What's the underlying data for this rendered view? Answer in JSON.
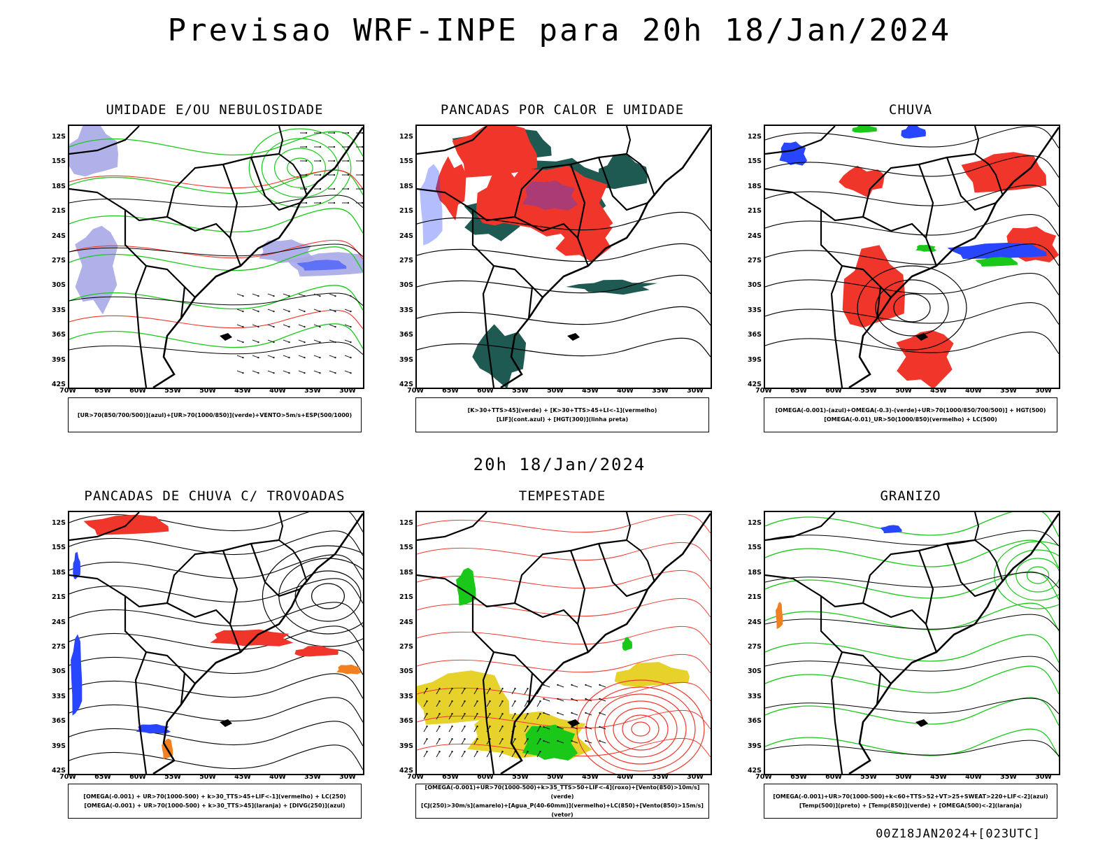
{
  "title": "Previsao WRF-INPE  para 20h 18/Jan/2024",
  "mid_date": "20h 18/Jan/2024",
  "footer": "00Z18JAN2024+[023UTC]",
  "colors": {
    "red": "#f0362b",
    "green": "#19c819",
    "blue": "#2846ff",
    "lavender": "#a8a8e8",
    "teal": "#1f5a52",
    "yellow": "#e6d22a",
    "orange": "#f08020"
  },
  "chart_data": [
    {
      "type": "heatmap",
      "title": "UMIDADE E/OU NEBULOSIDADE",
      "legend_lines": [
        "[UR>70(850/700/500)](azul)+[UR>70(1000/850)](verde)+VENTO>5m/s+ESP(500/1000)"
      ],
      "x_ticks": [
        "70W",
        "65W",
        "60W",
        "55W",
        "50W",
        "45W",
        "40W",
        "35W",
        "30W"
      ],
      "y_ticks": [
        "12S",
        "15S",
        "18S",
        "21S",
        "24S",
        "27S",
        "30S",
        "33S",
        "36S",
        "39S",
        "42S"
      ],
      "xlim": [
        -70,
        -28
      ],
      "ylim": [
        -42,
        -10
      ]
    },
    {
      "type": "heatmap",
      "title": "PANCADAS POR CALOR E UMIDADE",
      "legend_lines": [
        "[K>30+TTS>45](verde) + [K>30+TTS>45+LI<-1](vermelho)",
        "[LIF](cont.azul) + [HGT(300)](linha preta)"
      ],
      "x_ticks": [
        "70W",
        "65W",
        "60W",
        "55W",
        "50W",
        "45W",
        "40W",
        "35W",
        "30W"
      ],
      "y_ticks": [
        "12S",
        "15S",
        "18S",
        "21S",
        "24S",
        "27S",
        "30S",
        "33S",
        "36S",
        "39S",
        "42S"
      ],
      "xlim": [
        -70,
        -28
      ],
      "ylim": [
        -42,
        -10
      ]
    },
    {
      "type": "heatmap",
      "title": "CHUVA",
      "legend_lines": [
        "[OMEGA(-0.001)-(azul)+OMEGA(-0.3)-(verde)+UR>70(1000/850/700/500)] + HGT(500)",
        "[OMEGA(-0.01)_UR>50(1000/850)(vermelho) + LC(500)"
      ],
      "x_ticks": [
        "70W",
        "65W",
        "60W",
        "55W",
        "50W",
        "45W",
        "40W",
        "35W",
        "30W"
      ],
      "y_ticks": [
        "12S",
        "15S",
        "18S",
        "21S",
        "24S",
        "27S",
        "30S",
        "33S",
        "36S",
        "39S",
        "42S"
      ],
      "xlim": [
        -70,
        -28
      ],
      "ylim": [
        -42,
        -10
      ]
    },
    {
      "type": "heatmap",
      "title": "PANCADAS DE CHUVA C/ TROVOADAS",
      "legend_lines": [
        "[OMEGA(-0.001) + UR>70(1000-500) + k>30_TTS>45+LIF<-1](vermelho) + LC(250)",
        "[OMEGA(-0.001) + UR>70(1000-500) + k>30_TTS>45](laranja) + [DIVG(250)](azul)"
      ],
      "x_ticks": [
        "70W",
        "65W",
        "60W",
        "55W",
        "50W",
        "45W",
        "40W",
        "35W",
        "30W"
      ],
      "y_ticks": [
        "12S",
        "15S",
        "18S",
        "21S",
        "24S",
        "27S",
        "30S",
        "33S",
        "36S",
        "39S",
        "42S"
      ],
      "xlim": [
        -70,
        -28
      ],
      "ylim": [
        -42,
        -10
      ]
    },
    {
      "type": "heatmap",
      "title": "TEMPESTADE",
      "legend_lines": [
        "[OMEGA(-0.001)+UR>70(1000-500)+k>35_TTS>50+LIF<-4](roxo)+[Vento(850)>10m/s](verde)",
        "[CJ(250)>30m/s](amarelo)+[Agua_P(40-60mm)](vermelho)+LC(850)+[Vento(850)>15m/s](vetor)"
      ],
      "x_ticks": [
        "70W",
        "65W",
        "60W",
        "55W",
        "50W",
        "45W",
        "40W",
        "35W",
        "30W"
      ],
      "y_ticks": [
        "12S",
        "15S",
        "18S",
        "21S",
        "24S",
        "27S",
        "30S",
        "33S",
        "36S",
        "39S",
        "42S"
      ],
      "xlim": [
        -70,
        -28
      ],
      "ylim": [
        -42,
        -10
      ]
    },
    {
      "type": "heatmap",
      "title": "GRANIZO",
      "legend_lines": [
        "[OMEGA(-0.001)+UR>70(1000-500)+k<60+TTS>52+VT>25+SWEAT>220+LIF<-2](azul)",
        "[Temp(500)](preto) + [Temp(850)](verde) + [OMEGA(500)<-2](laranja)"
      ],
      "x_ticks": [
        "70W",
        "65W",
        "60W",
        "55W",
        "50W",
        "45W",
        "40W",
        "35W",
        "30W"
      ],
      "y_ticks": [
        "12S",
        "15S",
        "18S",
        "21S",
        "24S",
        "27S",
        "30S",
        "33S",
        "36S",
        "39S",
        "42S"
      ],
      "xlim": [
        -70,
        -28
      ],
      "ylim": [
        -42,
        -10
      ]
    }
  ]
}
